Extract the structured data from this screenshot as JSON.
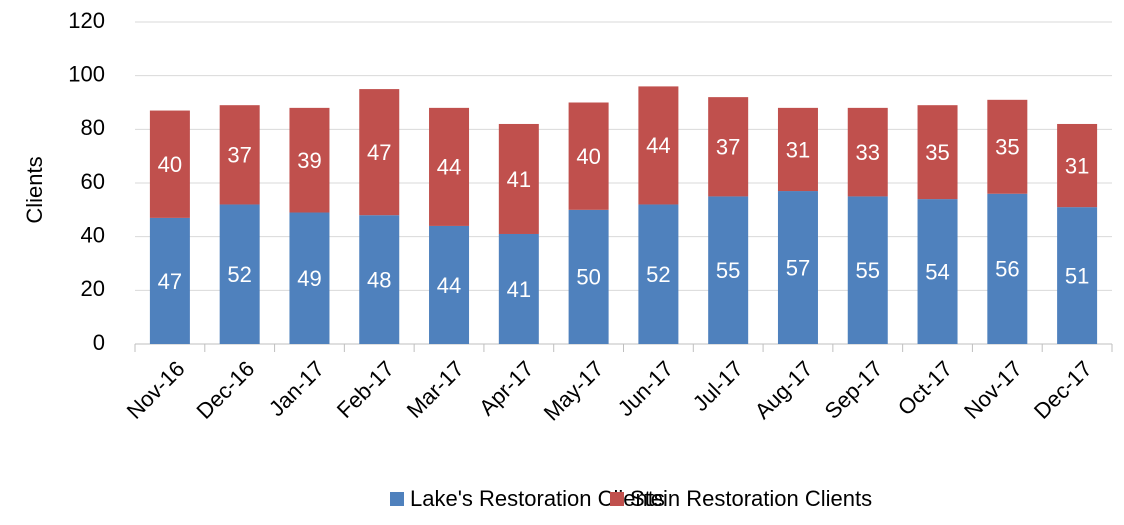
{
  "chart_data": {
    "type": "stacked_bar",
    "y_label": "Clients",
    "categories": [
      "Nov-16",
      "Dec-16",
      "Jan-17",
      "Feb-17",
      "Mar-17",
      "Apr-17",
      "May-17",
      "Jun-17",
      "Jul-17",
      "Aug-17",
      "Sep-17",
      "Oct-17",
      "Nov-17",
      "Dec-17"
    ],
    "series": [
      {
        "name": "Lake's Restoration Clients",
        "color": "#4f81bd",
        "values": [
          47,
          52,
          49,
          48,
          44,
          41,
          50,
          52,
          55,
          57,
          55,
          54,
          56,
          51
        ]
      },
      {
        "name": "Stein Restoration Clients",
        "color": "#c0504d",
        "values": [
          40,
          37,
          39,
          47,
          44,
          41,
          40,
          44,
          37,
          31,
          33,
          35,
          35,
          31
        ]
      }
    ],
    "ylim": [
      0,
      120
    ],
    "yticks": [
      0,
      20,
      40,
      60,
      80,
      100,
      120
    ],
    "grid": true,
    "legend": "bottom"
  }
}
